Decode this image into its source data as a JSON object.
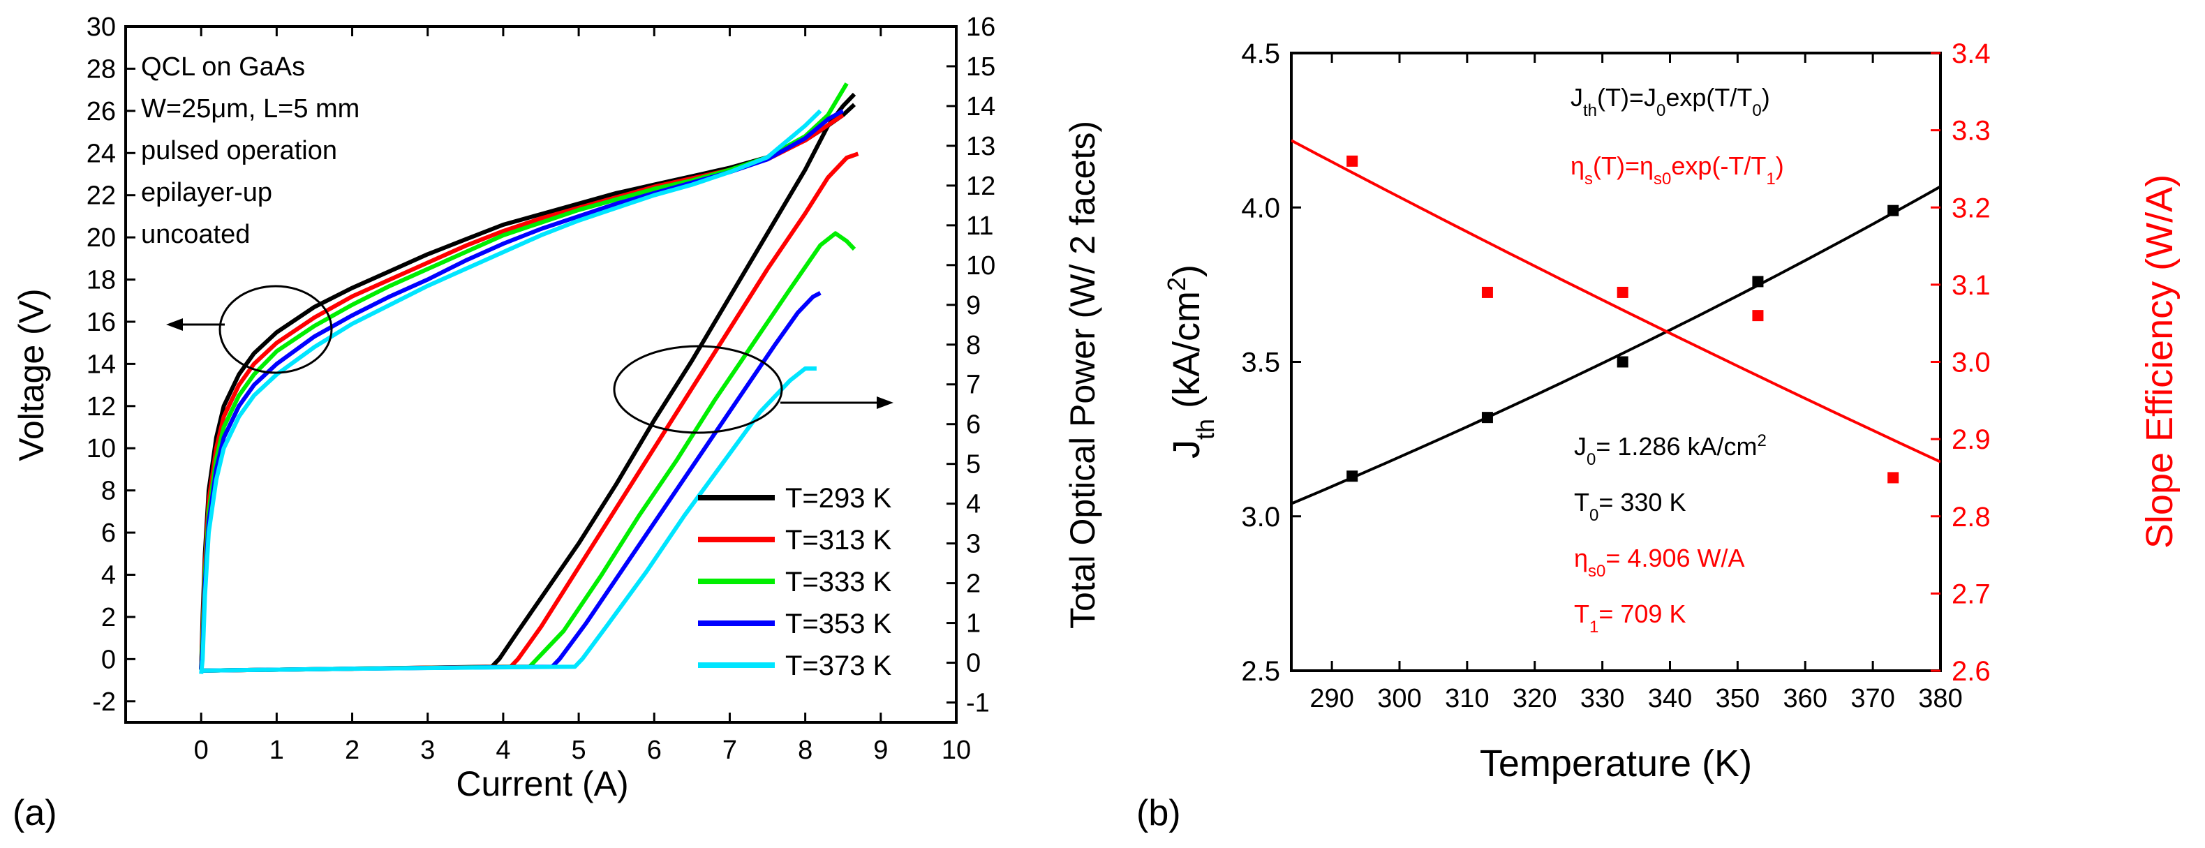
{
  "figure": {
    "panel_a_label": "(a)",
    "panel_b_label": "(b)"
  },
  "chart_data": [
    {
      "type": "line",
      "panel": "(a)",
      "xlabel": "Current (A)",
      "ylabel_left": "Voltage (V)",
      "ylabel_right": "Total Optical Power (W/ 2 facets)",
      "xlim": [
        -1,
        10
      ],
      "ylim_left": [
        -3,
        30
      ],
      "ylim_right": [
        -1.5,
        16
      ],
      "xticks": [
        0,
        1,
        2,
        3,
        4,
        5,
        6,
        7,
        8,
        9,
        10
      ],
      "yticks_left": [
        -2,
        0,
        2,
        4,
        6,
        8,
        10,
        12,
        14,
        16,
        18,
        20,
        22,
        24,
        26,
        28,
        30
      ],
      "yticks_right": [
        -1,
        0,
        1,
        2,
        3,
        4,
        5,
        6,
        7,
        8,
        9,
        10,
        11,
        12,
        13,
        14,
        15,
        16
      ],
      "annotations": [
        "QCL on GaAs",
        "W=25μm, L=5 mm",
        "pulsed operation",
        "epilayer-up",
        "uncoated"
      ],
      "legend_position": "bottom-right",
      "series": [
        {
          "name": "T=293 K",
          "color": "#000000",
          "voltage": {
            "x": [
              0,
              0.02,
              0.05,
              0.1,
              0.2,
              0.3,
              0.5,
              0.7,
              1,
              1.5,
              2,
              2.5,
              3,
              3.5,
              4,
              4.5,
              5,
              5.5,
              6,
              6.5,
              7,
              7.5,
              8,
              8.3,
              8.5,
              8.65
            ],
            "y": [
              -0.5,
              2,
              5,
              8,
              10.5,
              12,
              13.5,
              14.5,
              15.5,
              16.7,
              17.6,
              18.4,
              19.2,
              19.9,
              20.6,
              21.1,
              21.6,
              22.1,
              22.5,
              22.9,
              23.3,
              23.8,
              24.6,
              25.3,
              25.8,
              26.3
            ]
          },
          "power": {
            "x": [
              0,
              2,
              3.85,
              3.95,
              4.2,
              4.6,
              5,
              5.5,
              6,
              6.5,
              7,
              7.5,
              8,
              8.3,
              8.5,
              8.65
            ],
            "y": [
              -0.2,
              -0.15,
              -0.1,
              0.1,
              0.8,
              1.9,
              3,
              4.5,
              6.1,
              7.6,
              9.2,
              10.8,
              12.4,
              13.5,
              14,
              14.3
            ]
          }
        },
        {
          "name": "T=313 K",
          "color": "#ff0000",
          "voltage": {
            "x": [
              0,
              0.02,
              0.05,
              0.1,
              0.2,
              0.3,
              0.5,
              0.7,
              1,
              1.5,
              2,
              2.5,
              3,
              3.5,
              4,
              4.5,
              5,
              5.5,
              6,
              6.5,
              7,
              7.5,
              8,
              8.5
            ],
            "y": [
              -0.5,
              1.5,
              4.5,
              7.5,
              10,
              11.5,
              13,
              14,
              15,
              16.2,
              17.2,
              18,
              18.8,
              19.6,
              20.3,
              20.9,
              21.4,
              21.9,
              22.4,
              22.8,
              23.2,
              23.7,
              24.6,
              25.8
            ]
          },
          "power": {
            "x": [
              0,
              2,
              4.1,
              4.2,
              4.5,
              5,
              5.5,
              6,
              6.5,
              7,
              7.5,
              8,
              8.3,
              8.55,
              8.7
            ],
            "y": [
              -0.2,
              -0.15,
              -0.1,
              0.1,
              0.9,
              2.4,
              3.9,
              5.4,
              6.9,
              8.4,
              9.9,
              11.3,
              12.2,
              12.7,
              12.8
            ]
          }
        },
        {
          "name": "T=333 K",
          "color": "#00ee00",
          "voltage": {
            "x": [
              0,
              0.02,
              0.05,
              0.1,
              0.2,
              0.3,
              0.5,
              0.7,
              1,
              1.5,
              2,
              2.5,
              3,
              3.5,
              4,
              4.5,
              5,
              5.5,
              6,
              6.5,
              7,
              7.5,
              8,
              8.3,
              8.55
            ],
            "y": [
              -0.5,
              1,
              4,
              7,
              9.5,
              11,
              12.5,
              13.5,
              14.6,
              15.8,
              16.8,
              17.7,
              18.5,
              19.3,
              20.1,
              20.7,
              21.3,
              21.8,
              22.3,
              22.7,
              23.2,
              23.8,
              24.8,
              25.8,
              27.3
            ]
          },
          "power": {
            "x": [
              0,
              2,
              4.35,
              4.45,
              4.8,
              5.3,
              5.8,
              6.3,
              6.8,
              7.3,
              7.8,
              8.2,
              8.4,
              8.55,
              8.65
            ],
            "y": [
              -0.2,
              -0.15,
              -0.1,
              0.1,
              0.8,
              2.2,
              3.7,
              5.1,
              6.6,
              8,
              9.4,
              10.5,
              10.8,
              10.6,
              10.4
            ]
          }
        },
        {
          "name": "T=353 K",
          "color": "#0000ff",
          "voltage": {
            "x": [
              0,
              0.02,
              0.05,
              0.1,
              0.2,
              0.3,
              0.5,
              0.7,
              1,
              1.5,
              2,
              2.5,
              3,
              3.5,
              4,
              4.5,
              5,
              5.5,
              6,
              6.5,
              7,
              7.5,
              8,
              8.3,
              8.5
            ],
            "y": [
              -0.5,
              0.5,
              3.5,
              6.5,
              9,
              10.5,
              12,
              13,
              14,
              15.3,
              16.3,
              17.2,
              18,
              18.9,
              19.7,
              20.4,
              21,
              21.6,
              22.1,
              22.6,
              23.1,
              23.7,
              24.7,
              25.6,
              26
            ]
          },
          "power": {
            "x": [
              0,
              2,
              4.65,
              4.75,
              5.1,
              5.6,
              6.1,
              6.6,
              7.1,
              7.6,
              7.9,
              8.1,
              8.2
            ],
            "y": [
              -0.2,
              -0.15,
              -0.1,
              0.1,
              1,
              2.4,
              3.8,
              5.2,
              6.6,
              8,
              8.8,
              9.2,
              9.3
            ]
          }
        },
        {
          "name": "T=373 K",
          "color": "#00e5ff",
          "voltage": {
            "x": [
              0,
              0.02,
              0.05,
              0.1,
              0.2,
              0.3,
              0.5,
              0.7,
              1,
              1.5,
              2,
              2.5,
              3,
              3.5,
              4,
              4.5,
              5,
              5.5,
              6,
              6.5,
              7,
              7.5,
              8,
              8.2
            ],
            "y": [
              -0.7,
              0,
              3,
              6,
              8.5,
              10,
              11.5,
              12.5,
              13.5,
              14.8,
              15.9,
              16.8,
              17.7,
              18.5,
              19.3,
              20.1,
              20.8,
              21.4,
              22,
              22.5,
              23.1,
              23.8,
              25.3,
              26
            ]
          },
          "power": {
            "x": [
              0,
              2,
              4.95,
              5.05,
              5.4,
              5.9,
              6.4,
              6.9,
              7.4,
              7.8,
              8,
              8.15
            ],
            "y": [
              -0.2,
              -0.15,
              -0.1,
              0.1,
              1,
              2.3,
              3.7,
              5,
              6.3,
              7.1,
              7.4,
              7.4
            ]
          }
        }
      ]
    },
    {
      "type": "scatter",
      "panel": "(b)",
      "xlabel": "Temperature (K)",
      "ylabel_left": "J_th (kA/cm^2)",
      "ylabel_right": "Slope Efficiency (W/A)",
      "xlim": [
        284,
        380
      ],
      "ylim_left": [
        2.5,
        4.5
      ],
      "ylim_right": [
        2.6,
        3.4
      ],
      "xticks": [
        290,
        300,
        310,
        320,
        330,
        340,
        350,
        360,
        370,
        380
      ],
      "xtick_labels": [
        "290",
        "300",
        "310",
        "320",
        "330",
        "340",
        "350",
        "360",
        "370",
        "380"
      ],
      "yticks_left": [
        2.5,
        3.0,
        3.5,
        4.0,
        4.5
      ],
      "yticks_left_labels": [
        "2.5",
        "3.0",
        "3.5",
        "4.0",
        "4.5"
      ],
      "yticks_right": [
        2.6,
        2.7,
        2.8,
        2.9,
        3.0,
        3.1,
        3.2,
        3.3,
        3.4
      ],
      "yticks_right_labels": [
        "2.6",
        "2.7",
        "2.8",
        "2.9",
        "3.0",
        "3.1",
        "3.2",
        "3.3",
        "3.4"
      ],
      "series": [
        {
          "name": "Jth",
          "color": "#000000",
          "axis": "left",
          "x": [
            293,
            313,
            333,
            353,
            373
          ],
          "y": [
            3.13,
            3.32,
            3.5,
            3.76,
            3.99
          ],
          "fit": {
            "formula": "J_th(T)=J_0 exp(T/T_0)",
            "J0": 1.286,
            "T0": 330,
            "x_range": [
              284,
              380
            ]
          }
        },
        {
          "name": "Slope Efficiency",
          "color": "#ff0000",
          "axis": "right",
          "x": [
            293,
            313,
            333,
            353,
            373
          ],
          "y": [
            3.26,
            3.09,
            3.09,
            3.06,
            2.85
          ],
          "fit": {
            "formula": "η_s(T)=η_s0 exp(-T/T_1)",
            "eta_s0": 4.906,
            "T1": 709,
            "x_range": [
              284,
              380
            ]
          }
        }
      ],
      "annotations": {
        "formula_jth": "J_th(T)=J_0exp(T/T_0)",
        "formula_eta": "η_s(T)=η_s0exp(-T/T_1)",
        "param_j0": "J_0= 1.286 kA/cm^2",
        "param_t0": "T_0= 330 K",
        "param_eta": "η_s0= 4.906 W/A",
        "param_t1": "T_1= 709 K"
      }
    }
  ]
}
